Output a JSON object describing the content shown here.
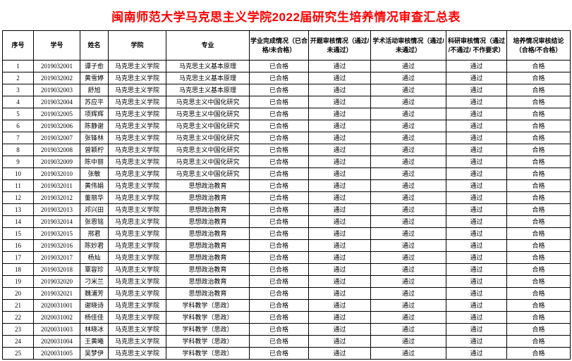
{
  "title": "闽南师范大学马克思主义学院2022届研究生培养情况审查汇总表",
  "colors": {
    "title_text": "#ff0000",
    "table_border": "#000000",
    "background": "#ffffff"
  },
  "table": {
    "columns": [
      "序号",
      "学号",
      "姓名",
      "学院",
      "专业",
      "学业完成情况（已合格/未合格）",
      "开题审核情况（通过/未通过）",
      "学术活动审核情况（通过/未通过）",
      "科研审核情况（通过 /不通过/ 不作要求）",
      "培养情况审核结论（合格/不合格）"
    ],
    "rows": [
      [
        "1",
        "2019032001",
        "谭子愈",
        "马克思主义学院",
        "马克思主义基本原理",
        "已合格",
        "通过",
        "通过",
        "通过",
        "合格"
      ],
      [
        "2",
        "2019032002",
        "黄雪婷",
        "马克思主义学院",
        "马克思主义基本原理",
        "已合格",
        "通过",
        "通过",
        "通过",
        "合格"
      ],
      [
        "3",
        "2019032003",
        "舒旭",
        "马克思主义学院",
        "马克思主义基本原理",
        "已合格",
        "通过",
        "通过",
        "通过",
        "合格"
      ],
      [
        "4",
        "2019032004",
        "苏应平",
        "马克思主义学院",
        "马克思主义中国化研究",
        "已合格",
        "通过",
        "通过",
        "通过",
        "合格"
      ],
      [
        "5",
        "2019032005",
        "项辉辉",
        "马克思主义学院",
        "马克思主义中国化研究",
        "已合格",
        "通过",
        "通过",
        "通过",
        "合格"
      ],
      [
        "6",
        "2019032006",
        "陈静谢",
        "马克思主义学院",
        "马克思主义中国化研究",
        "已合格",
        "通过",
        "通过",
        "通过",
        "合格"
      ],
      [
        "7",
        "2019032007",
        "张锋林",
        "马克思主义学院",
        "马克思主义中国化研究",
        "已合格",
        "通过",
        "通过",
        "通过",
        "合格"
      ],
      [
        "8",
        "2019032008",
        "曾颖柠",
        "马克思主义学院",
        "马克思主义中国化研究",
        "已合格",
        "通过",
        "通过",
        "通过",
        "合格"
      ],
      [
        "9",
        "2019032009",
        "陈中丽",
        "马克思主义学院",
        "马克思主义中国化研究",
        "已合格",
        "通过",
        "通过",
        "通过",
        "合格"
      ],
      [
        "10",
        "2019032010",
        "张敏",
        "马克思主义学院",
        "马克思主义中国化研究",
        "已合格",
        "通过",
        "通过",
        "通过",
        "合格"
      ],
      [
        "11",
        "2019032011",
        "黄伟娟",
        "马克思主义学院",
        "思想政治教育",
        "已合格",
        "通过",
        "通过",
        "通过",
        "合格"
      ],
      [
        "12",
        "2019032012",
        "董丽华",
        "马克思主义学院",
        "思想政治教育",
        "已合格",
        "通过",
        "通过",
        "通过",
        "合格"
      ],
      [
        "13",
        "2019032013",
        "邓兴田",
        "马克思主义学院",
        "思想政治教育",
        "已合格",
        "通过",
        "通过",
        "通过",
        "合格"
      ],
      [
        "14",
        "2019032014",
        "张恩铭",
        "马克思主义学院",
        "思想政治教育",
        "已合格",
        "通过",
        "通过",
        "通过",
        "合格"
      ],
      [
        "15",
        "2019032015",
        "邢君",
        "马克思主义学院",
        "思想政治教育",
        "已合格",
        "通过",
        "通过",
        "通过",
        "合格"
      ],
      [
        "16",
        "2019032016",
        "陈妙君",
        "马克思主义学院",
        "思想政治教育",
        "已合格",
        "通过",
        "通过",
        "通过",
        "合格"
      ],
      [
        "17",
        "2019032017",
        "杨灿",
        "马克思主义学院",
        "思想政治教育",
        "已合格",
        "通过",
        "通过",
        "通过",
        "合格"
      ],
      [
        "18",
        "2019032018",
        "覃容珍",
        "马克思主义学院",
        "思想政治教育",
        "已合格",
        "通过",
        "通过",
        "通过",
        "合格"
      ],
      [
        "19",
        "2019032020",
        "刁米兰",
        "马克思主义学院",
        "思想政治教育",
        "已合格",
        "通过",
        "通过",
        "通过",
        "合格"
      ],
      [
        "20",
        "2019032021",
        "魏浦芳",
        "马克思主义学院",
        "思想政治教育",
        "已合格",
        "通过",
        "通过",
        "通过",
        "合格"
      ],
      [
        "21",
        "2020031001",
        "谢晓诗",
        "马克思主义学院",
        "学科教学（思政）",
        "已合格",
        "通过",
        "通过",
        "通过",
        "合格"
      ],
      [
        "22",
        "2020031002",
        "杨佳佳",
        "马克思主义学院",
        "学科教学（思政）",
        "已合格",
        "通过",
        "通过",
        "通过",
        "合格"
      ],
      [
        "23",
        "2020031003",
        "林晓冰",
        "马克思主义学院",
        "学科教学（思政）",
        "已合格",
        "通过",
        "通过",
        "通过",
        "合格"
      ],
      [
        "24",
        "2020031004",
        "王黄曦",
        "马克思主义学院",
        "学科教学（思政）",
        "已合格",
        "通过",
        "通过",
        "通过",
        "合格"
      ],
      [
        "25",
        "2020031005",
        "吴梦伊",
        "马克思主义学院",
        "学科教学（思政）",
        "已合格",
        "通过",
        "通过",
        "通过",
        "合格"
      ]
    ]
  }
}
